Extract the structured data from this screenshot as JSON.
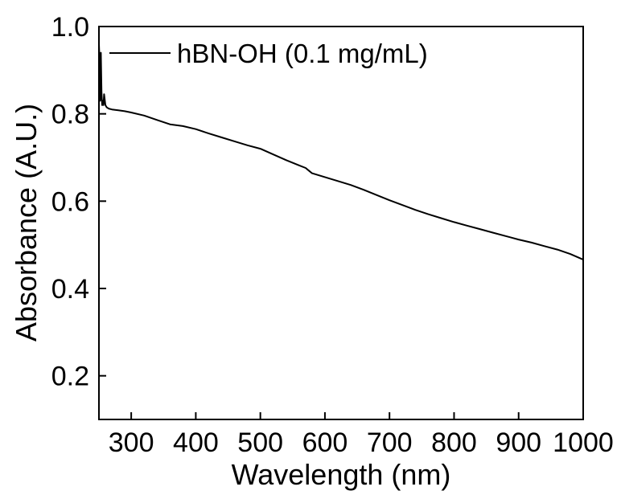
{
  "chart_data": {
    "type": "line",
    "title": "",
    "xlabel": "Wavelength (nm)",
    "ylabel": "Absorbance (A.U.)",
    "xlim": [
      250,
      1000
    ],
    "ylim": [
      0.1,
      1.0
    ],
    "xticks": [
      300,
      400,
      500,
      600,
      700,
      800,
      900,
      1000
    ],
    "xtick_labels": [
      "300",
      "400",
      "500",
      "600",
      "700",
      "800",
      "900",
      "1000"
    ],
    "yticks": [
      0.2,
      0.4,
      0.6,
      0.8,
      1.0
    ],
    "ytick_labels": [
      "0.2",
      "0.4",
      "0.6",
      "0.8",
      "1.0"
    ],
    "grid": false,
    "legend_position": "top-left",
    "series": [
      {
        "name": "hBN-OH (0.1 mg/mL)",
        "color": "#000000",
        "x": [
          250,
          251,
          252,
          253,
          254,
          255,
          256,
          257,
          258,
          260,
          262,
          265,
          270,
          280,
          290,
          300,
          320,
          340,
          360,
          380,
          400,
          420,
          440,
          460,
          480,
          500,
          520,
          540,
          560,
          570,
          575,
          580,
          600,
          620,
          640,
          660,
          680,
          700,
          720,
          740,
          760,
          780,
          800,
          820,
          840,
          860,
          880,
          900,
          920,
          940,
          960,
          980,
          1000
        ],
        "y": [
          0.96,
          0.92,
          0.83,
          0.94,
          0.85,
          0.82,
          0.83,
          0.82,
          0.845,
          0.82,
          0.815,
          0.812,
          0.81,
          0.808,
          0.806,
          0.803,
          0.796,
          0.786,
          0.776,
          0.772,
          0.765,
          0.755,
          0.746,
          0.737,
          0.728,
          0.72,
          0.707,
          0.694,
          0.682,
          0.676,
          0.67,
          0.664,
          0.655,
          0.646,
          0.637,
          0.626,
          0.614,
          0.602,
          0.591,
          0.58,
          0.57,
          0.561,
          0.552,
          0.544,
          0.536,
          0.528,
          0.52,
          0.512,
          0.505,
          0.497,
          0.489,
          0.479,
          0.466
        ]
      }
    ]
  }
}
